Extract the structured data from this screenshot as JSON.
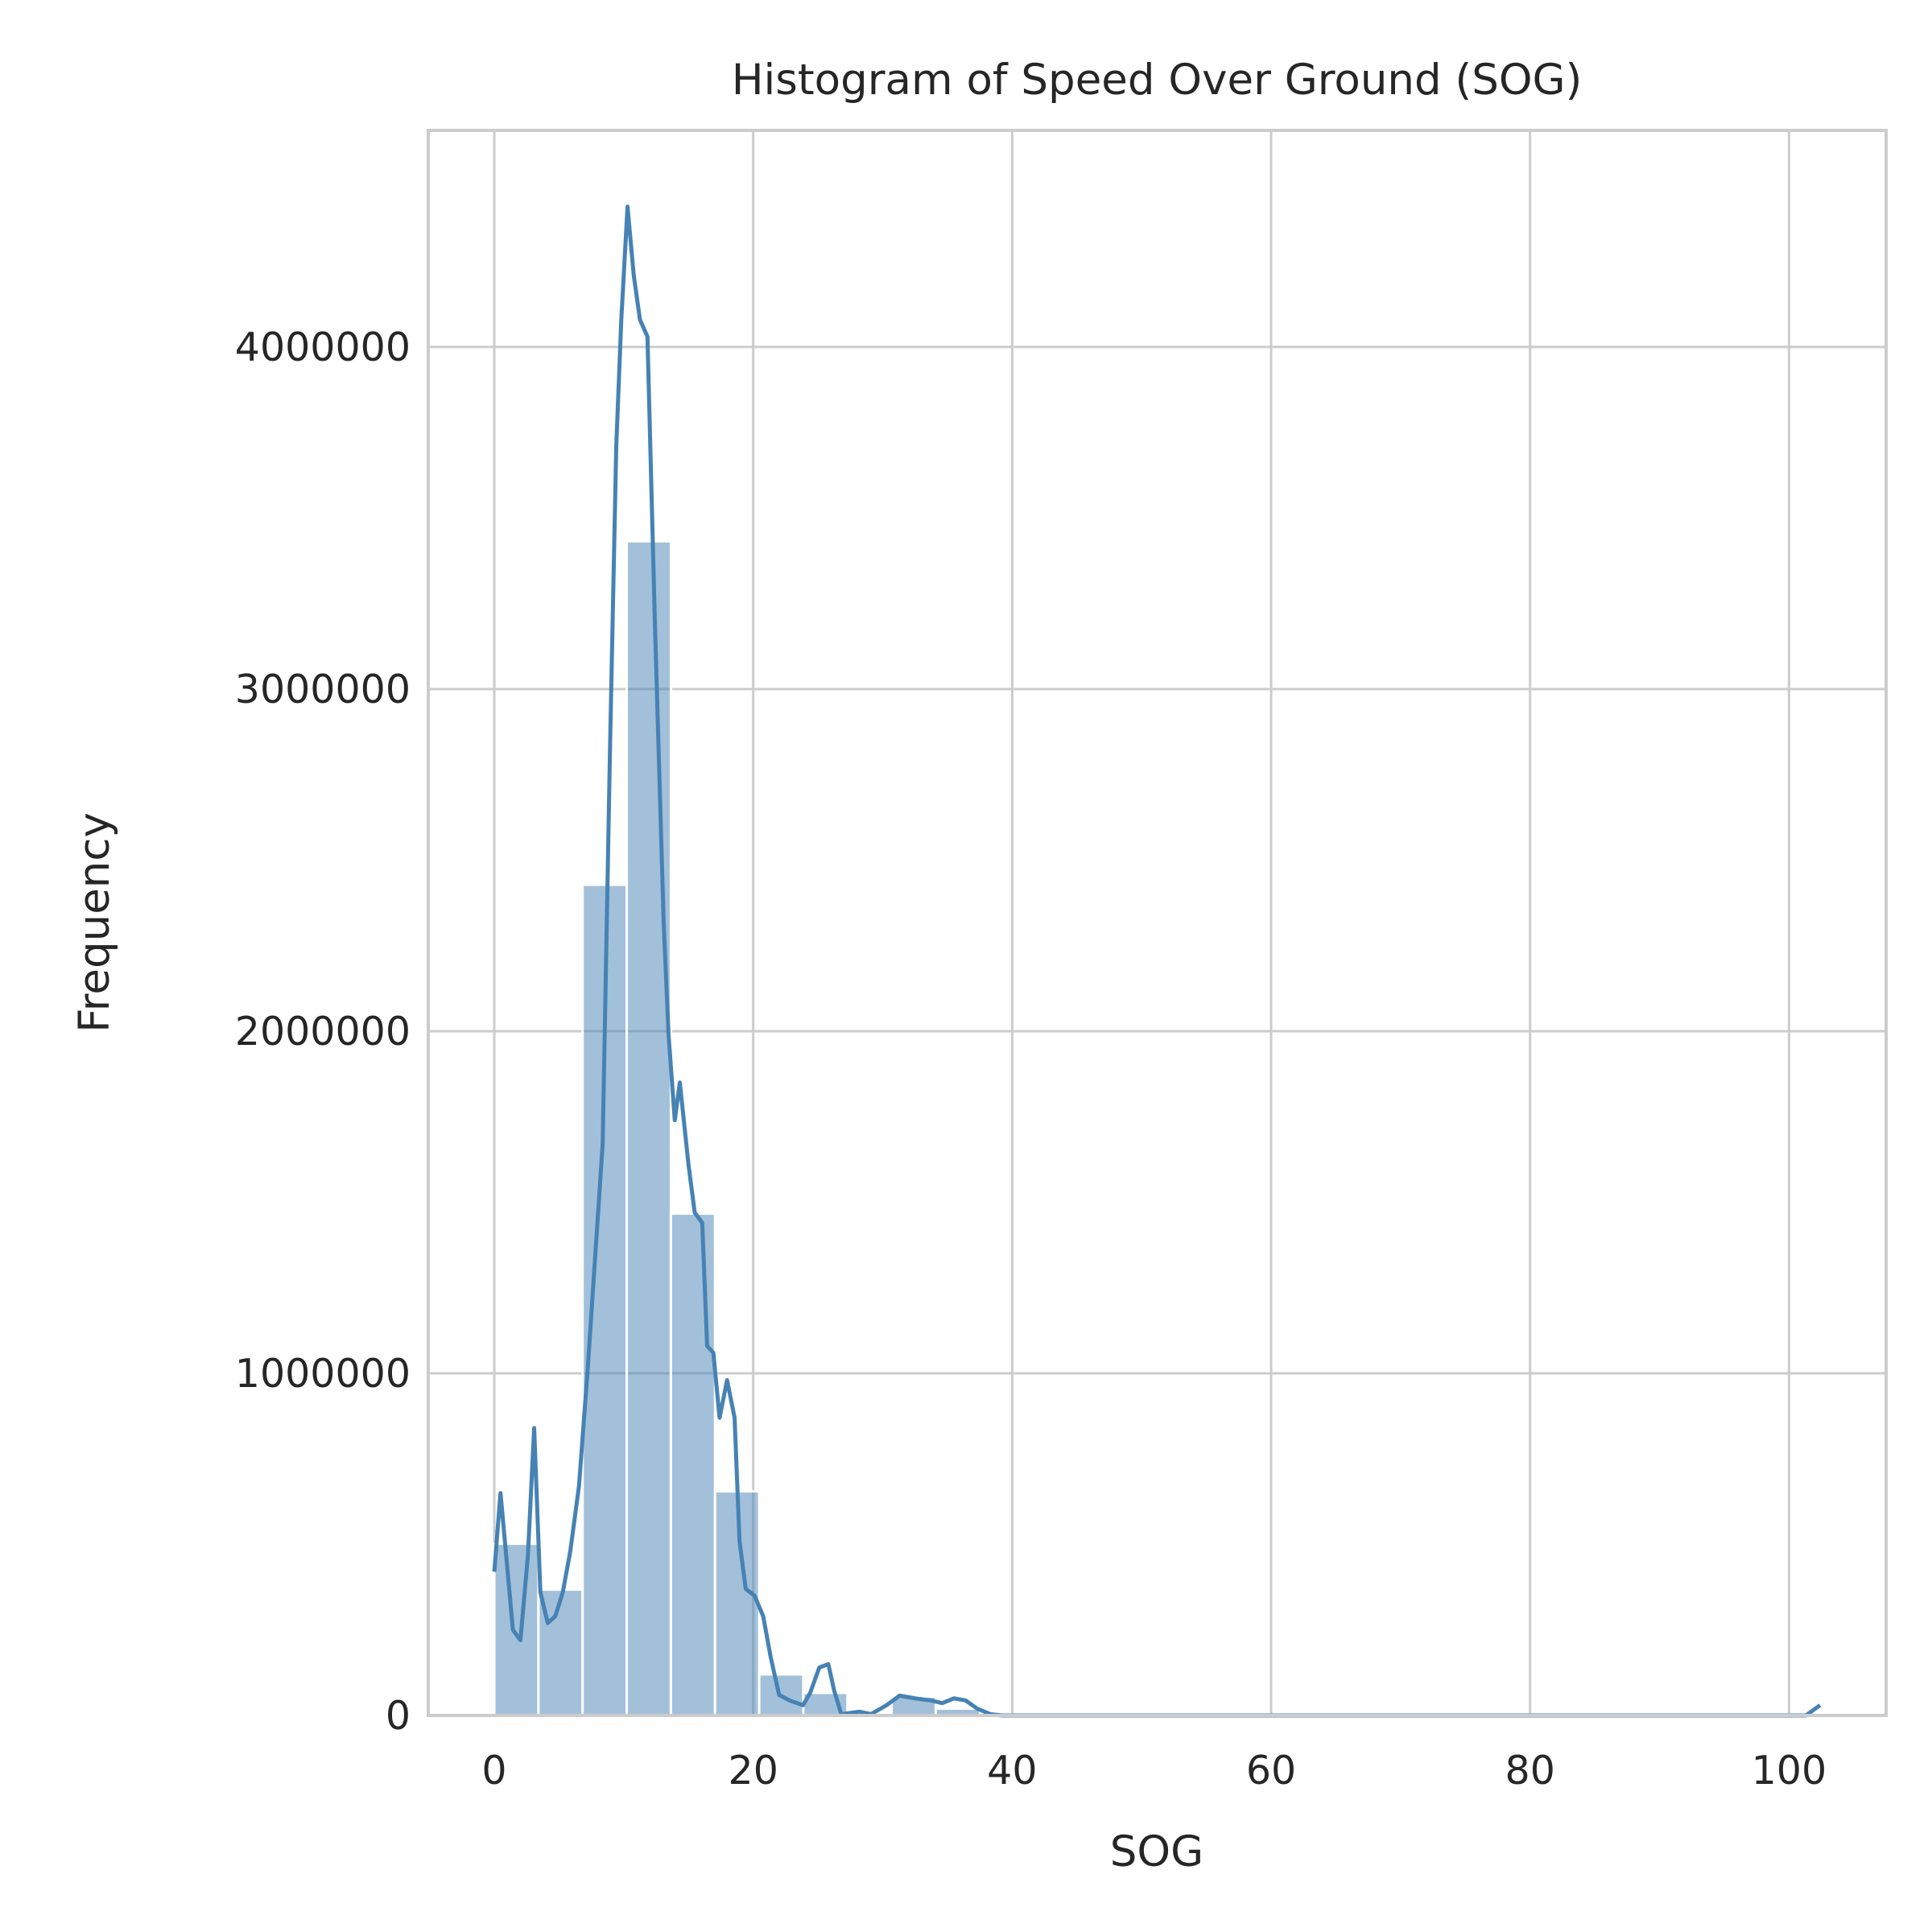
{
  "chart_data": {
    "type": "histogram",
    "title": "Histogram of Speed Over Ground (SOG)",
    "xlabel": "SOG",
    "ylabel": "Frequency",
    "bins": [
      0,
      3.41,
      6.82,
      10.23,
      13.64,
      17.05,
      20.46,
      23.87,
      27.28,
      30.69,
      34.1,
      37.51,
      40.92,
      44.33,
      47.74,
      51.15,
      54.56,
      57.97,
      61.38,
      64.79,
      68.2,
      71.61,
      75.02,
      78.43,
      81.84,
      85.25,
      88.66,
      92.07,
      95.48,
      98.89,
      102.3
    ],
    "counts": [
      502000,
      368000,
      2428000,
      3432000,
      1467000,
      655000,
      120000,
      66000,
      5000,
      55000,
      20000,
      0,
      0,
      0,
      0,
      0,
      0,
      0,
      0,
      0,
      0,
      0,
      0,
      0,
      0,
      0,
      0,
      0,
      0,
      3000
    ],
    "color": "#4682b4",
    "kde": {
      "x": [
        0,
        0.48,
        1.44,
        2.02,
        2.6,
        3.08,
        3.56,
        4.13,
        4.71,
        5.29,
        5.87,
        6.54,
        7.21,
        7.79,
        8.37,
        8.94,
        9.42,
        9.81,
        10.29,
        10.77,
        11.25,
        11.83,
        12.4,
        13.08,
        13.46,
        13.94,
        14.33,
        15.0,
        15.48,
        16.06,
        16.44,
        16.92,
        17.4,
        17.98,
        18.56,
        18.94,
        19.42,
        20.1,
        20.77,
        21.35,
        22.0,
        22.8,
        23.85,
        24.4,
        25.1,
        25.8,
        26.25,
        26.8,
        28.2,
        29.1,
        30.3,
        31.3,
        32.5,
        33.7,
        34.6,
        35.5,
        36.4,
        37.3,
        38.3,
        39.2,
        101.3,
        102.4
      ],
      "y": [
        420000,
        650000,
        250000,
        220000,
        470000,
        840000,
        360000,
        270000,
        290000,
        360000,
        480000,
        670000,
        1010000,
        1340000,
        1670000,
        2830000,
        3710000,
        4080000,
        4410000,
        4210000,
        4080000,
        4030000,
        3200000,
        2320000,
        1990000,
        1740000,
        1850000,
        1610000,
        1470000,
        1440000,
        1080000,
        1060000,
        870000,
        980000,
        870000,
        510000,
        370000,
        350000,
        290000,
        170000,
        60000,
        44000,
        30000,
        66000,
        140000,
        150000,
        73000,
        4000,
        11000,
        4000,
        30000,
        58000,
        50000,
        44000,
        36000,
        50000,
        44000,
        20000,
        4000,
        0,
        0,
        30000
      ]
    },
    "xlim": [
      -5.1,
      107.5
    ],
    "ylim": [
      0,
      4633000
    ],
    "xticks": [
      0,
      20,
      40,
      60,
      80,
      100
    ],
    "yticks": [
      0,
      1000000,
      2000000,
      3000000,
      4000000
    ],
    "grid": true
  }
}
